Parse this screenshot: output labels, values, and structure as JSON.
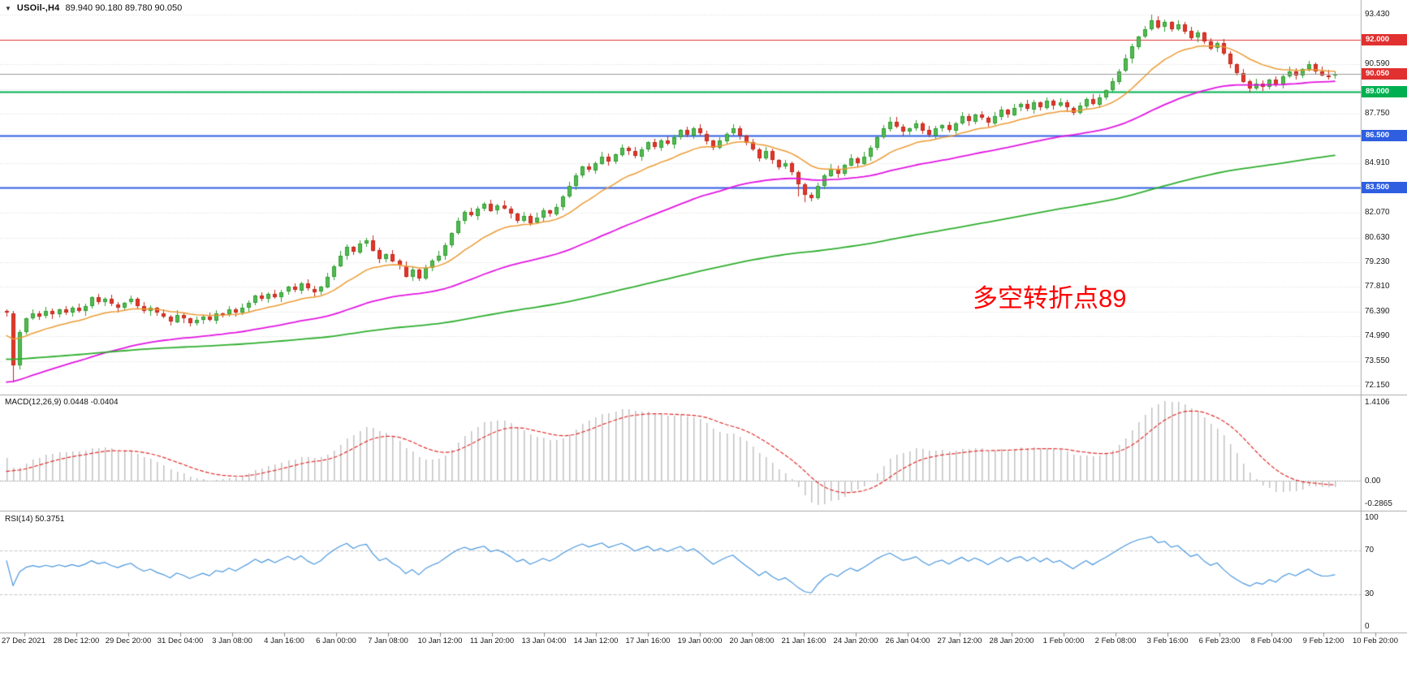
{
  "header": {
    "dropdown_icon": "▼",
    "symbol": "USOil-,H4",
    "ohlc": "89.940 90.180 89.780 90.050"
  },
  "annotation": {
    "text": "多空转折点89",
    "color": "#ff0000"
  },
  "chart_data": {
    "type": "candlestick",
    "symbol": "USOil",
    "timeframe": "H4",
    "candle_colors": {
      "up_fill": "#54b954",
      "up_border": "#2f9e2f",
      "down_fill": "#e2372a",
      "down_border": "#c1271b"
    },
    "grid_color": "#d8d8d8",
    "price_scale": {
      "min": 71.9,
      "max": 94.0
    },
    "y_axis_labels": [
      "93.430",
      "90.590",
      "87.750",
      "84.910",
      "82.070",
      "80.630",
      "79.230",
      "77.810",
      "76.390",
      "74.990",
      "73.550",
      "72.150"
    ],
    "gridline_prices": [
      93.43,
      92.01,
      90.59,
      89.17,
      87.75,
      86.33,
      84.91,
      83.49,
      82.07,
      80.63,
      79.23,
      77.81,
      76.39,
      74.99,
      73.55,
      72.15
    ],
    "hlines": [
      {
        "price": 92.0,
        "label": "92.000",
        "color": "#e03030",
        "width": 1
      },
      {
        "price": 89.0,
        "label": "89.000",
        "color": "#00b050",
        "width": 2
      },
      {
        "price": 86.5,
        "label": "86.500",
        "color": "#2f5fe0",
        "width": 2
      },
      {
        "price": 83.5,
        "label": "83.500",
        "color": "#2f5fe0",
        "width": 2
      }
    ],
    "current_price": {
      "price": 90.05,
      "label": "90.050",
      "badge_color": "#e03030",
      "line_color": "#9a9a9a"
    },
    "moving_averages": [
      {
        "name": "fast-ma",
        "color": "#eb9b34",
        "period": 16,
        "seed": null,
        "width": 1.5
      },
      {
        "name": "medium-ma",
        "color": "#e216e2",
        "period": 55,
        "seed": 68.0,
        "width": 1.8
      },
      {
        "name": "slow-ma",
        "color": "#2fae2f",
        "period": 180,
        "seed": 73.4,
        "width": 1.8
      }
    ],
    "indicator_warmup_closes": [
      75.8,
      75.4,
      74.9,
      74.3,
      73.8,
      73.2,
      72.7,
      72.3,
      72.6,
      73.1,
      72.8,
      72.5,
      72.9,
      73.3,
      73.0,
      73.5,
      73.9,
      73.7,
      74.2,
      74.6,
      74.3,
      74.8,
      75.2,
      74.9,
      75.3,
      75.1,
      74.8,
      75.3,
      75.7,
      75.9
    ],
    "candles": [
      [
        76.4,
        76.5,
        76.1,
        76.3
      ],
      [
        76.3,
        76.4,
        72.3,
        73.3
      ],
      [
        73.3,
        75.35,
        73.05,
        75.2
      ],
      [
        75.2,
        76.05,
        75.05,
        76.0
      ],
      [
        76.0,
        76.5,
        75.9,
        76.3
      ],
      [
        76.3,
        76.4,
        75.9,
        76.1
      ],
      [
        76.1,
        76.65,
        76.02,
        76.4
      ],
      [
        76.4,
        76.55,
        75.95,
        76.2
      ],
      [
        76.2,
        76.55,
        76.05,
        76.5
      ],
      [
        76.5,
        76.7,
        76.2,
        76.3
      ],
      [
        76.3,
        76.7,
        76.1,
        76.6
      ],
      [
        76.6,
        76.85,
        76.32,
        76.4
      ],
      [
        76.4,
        76.85,
        76.15,
        76.7
      ],
      [
        76.7,
        77.25,
        76.55,
        77.2
      ],
      [
        77.2,
        77.4,
        76.8,
        76.9
      ],
      [
        76.9,
        77.2,
        76.7,
        77.1
      ],
      [
        77.1,
        77.35,
        76.72,
        76.8
      ],
      [
        76.8,
        76.95,
        76.35,
        76.6
      ],
      [
        76.6,
        76.95,
        76.45,
        76.9
      ],
      [
        76.9,
        77.3,
        76.8,
        77.1
      ],
      [
        77.1,
        77.2,
        76.5,
        76.7
      ],
      [
        76.7,
        76.95,
        76.32,
        76.4
      ],
      [
        76.4,
        76.75,
        76.15,
        76.6
      ],
      [
        76.6,
        76.65,
        76.15,
        76.3
      ],
      [
        76.3,
        76.5,
        76.0,
        76.1
      ],
      [
        76.1,
        76.2,
        75.6,
        75.8
      ],
      [
        75.8,
        76.45,
        75.72,
        76.2
      ],
      [
        76.2,
        76.35,
        75.75,
        76.0
      ],
      [
        76.0,
        76.05,
        75.55,
        75.7
      ],
      [
        75.7,
        76.1,
        75.6,
        75.9
      ],
      [
        75.9,
        76.2,
        75.7,
        76.1
      ],
      [
        76.1,
        76.35,
        75.82,
        75.9
      ],
      [
        75.9,
        76.45,
        75.65,
        76.3
      ],
      [
        76.3,
        76.35,
        76.05,
        76.2
      ],
      [
        76.2,
        76.7,
        76.1,
        76.5
      ],
      [
        76.5,
        76.6,
        76.1,
        76.3
      ],
      [
        76.3,
        76.85,
        76.22,
        76.6
      ],
      [
        76.6,
        77.05,
        76.35,
        76.9
      ],
      [
        76.9,
        77.35,
        76.75,
        77.3
      ],
      [
        77.3,
        77.5,
        77.0,
        77.1
      ],
      [
        77.1,
        77.5,
        76.9,
        77.4
      ],
      [
        77.4,
        77.65,
        77.12,
        77.2
      ],
      [
        77.2,
        77.65,
        76.95,
        77.5
      ],
      [
        77.5,
        77.85,
        77.35,
        77.8
      ],
      [
        77.8,
        78.0,
        77.5,
        77.6
      ],
      [
        77.6,
        78.1,
        77.4,
        78.0
      ],
      [
        78.0,
        78.25,
        77.62,
        77.7
      ],
      [
        77.7,
        77.85,
        77.25,
        77.5
      ],
      [
        77.5,
        77.85,
        77.35,
        77.8
      ],
      [
        77.8,
        78.6,
        77.7,
        78.4
      ],
      [
        78.4,
        79.1,
        78.2,
        79.0
      ],
      [
        79.0,
        79.85,
        78.92,
        79.6
      ],
      [
        79.6,
        80.25,
        79.35,
        80.1
      ],
      [
        80.1,
        80.15,
        79.65,
        79.8
      ],
      [
        79.8,
        80.5,
        79.7,
        80.3
      ],
      [
        80.3,
        80.6,
        80.1,
        80.5
      ],
      [
        80.5,
        80.75,
        79.82,
        79.9
      ],
      [
        79.9,
        80.05,
        79.15,
        79.4
      ],
      [
        79.4,
        79.75,
        79.25,
        79.7
      ],
      [
        79.7,
        79.9,
        79.2,
        79.3
      ],
      [
        79.3,
        79.4,
        78.8,
        79.0
      ],
      [
        79.0,
        79.25,
        78.32,
        78.4
      ],
      [
        78.4,
        78.95,
        78.15,
        78.8
      ],
      [
        78.8,
        78.85,
        78.15,
        78.3
      ],
      [
        78.3,
        79.1,
        78.2,
        78.9
      ],
      [
        78.9,
        79.4,
        78.7,
        79.3
      ],
      [
        79.3,
        79.85,
        79.22,
        79.6
      ],
      [
        79.6,
        80.35,
        79.35,
        80.2
      ],
      [
        80.2,
        80.95,
        80.05,
        80.9
      ],
      [
        80.9,
        81.8,
        80.8,
        81.6
      ],
      [
        81.6,
        82.2,
        81.4,
        82.1
      ],
      [
        82.1,
        82.35,
        81.82,
        81.9
      ],
      [
        81.9,
        82.45,
        81.65,
        82.3
      ],
      [
        82.3,
        82.65,
        82.15,
        82.6
      ],
      [
        82.6,
        82.8,
        82.1,
        82.2
      ],
      [
        82.2,
        82.6,
        82.0,
        82.5
      ],
      [
        82.5,
        82.75,
        82.22,
        82.3
      ],
      [
        82.3,
        82.45,
        81.75,
        82.0
      ],
      [
        82.0,
        82.05,
        81.45,
        81.6
      ],
      [
        81.6,
        82.1,
        81.5,
        81.9
      ],
      [
        81.9,
        82.0,
        81.3,
        81.5
      ],
      [
        81.5,
        82.05,
        81.42,
        81.8
      ],
      [
        81.8,
        82.35,
        81.55,
        82.2
      ],
      [
        82.2,
        82.25,
        81.85,
        82.0
      ],
      [
        82.0,
        82.6,
        81.9,
        82.4
      ],
      [
        82.4,
        83.1,
        82.2,
        83.0
      ],
      [
        83.0,
        83.85,
        82.92,
        83.6
      ],
      [
        83.6,
        84.35,
        83.35,
        84.2
      ],
      [
        84.2,
        84.75,
        84.05,
        84.7
      ],
      [
        84.7,
        84.9,
        84.4,
        84.5
      ],
      [
        84.5,
        85.0,
        84.3,
        84.9
      ],
      [
        84.9,
        85.55,
        84.82,
        85.3
      ],
      [
        85.3,
        85.45,
        84.75,
        85.0
      ],
      [
        85.0,
        85.45,
        84.85,
        85.4
      ],
      [
        85.4,
        86.0,
        85.3,
        85.8
      ],
      [
        85.8,
        85.9,
        85.4,
        85.6
      ],
      [
        85.6,
        85.85,
        85.22,
        85.3
      ],
      [
        85.3,
        85.85,
        85.05,
        85.7
      ],
      [
        85.7,
        86.15,
        85.55,
        86.1
      ],
      [
        86.1,
        86.3,
        85.7,
        85.8
      ],
      [
        85.8,
        86.3,
        85.6,
        86.2
      ],
      [
        86.2,
        86.45,
        85.92,
        86.0
      ],
      [
        86.0,
        86.55,
        85.75,
        86.4
      ],
      [
        86.4,
        86.85,
        86.25,
        86.8
      ],
      [
        86.8,
        87.0,
        86.4,
        86.5
      ],
      [
        86.5,
        87.0,
        86.3,
        86.9
      ],
      [
        86.9,
        87.15,
        86.52,
        86.6
      ],
      [
        86.6,
        86.75,
        85.95,
        86.2
      ],
      [
        86.2,
        86.25,
        85.65,
        85.8
      ],
      [
        85.8,
        86.4,
        85.7,
        86.2
      ],
      [
        86.2,
        86.7,
        86.0,
        86.6
      ],
      [
        86.6,
        87.15,
        86.52,
        86.9
      ],
      [
        86.9,
        87.05,
        86.25,
        86.5
      ],
      [
        86.5,
        86.55,
        85.95,
        86.1
      ],
      [
        86.1,
        86.3,
        85.6,
        85.7
      ],
      [
        85.7,
        85.8,
        85.0,
        85.2
      ],
      [
        85.2,
        85.85,
        85.12,
        85.6
      ],
      [
        85.6,
        85.75,
        84.85,
        85.1
      ],
      [
        85.1,
        85.15,
        84.55,
        84.7
      ],
      [
        84.7,
        85.1,
        84.6,
        84.9
      ],
      [
        84.9,
        85.0,
        84.2,
        84.4
      ],
      [
        84.4,
        84.5,
        83.0,
        83.7
      ],
      [
        83.7,
        83.8,
        82.7,
        83.1
      ],
      [
        83.1,
        83.25,
        82.75,
        82.9
      ],
      [
        82.9,
        83.8,
        82.8,
        83.6
      ],
      [
        83.6,
        84.3,
        83.4,
        84.2
      ],
      [
        84.2,
        84.85,
        84.12,
        84.6
      ],
      [
        84.6,
        84.75,
        84.05,
        84.3
      ],
      [
        84.3,
        84.85,
        84.15,
        84.8
      ],
      [
        84.8,
        85.4,
        84.7,
        85.2
      ],
      [
        85.2,
        85.3,
        84.7,
        84.9
      ],
      [
        84.9,
        85.55,
        84.82,
        85.3
      ],
      [
        85.3,
        85.95,
        85.05,
        85.8
      ],
      [
        85.8,
        86.45,
        85.65,
        86.4
      ],
      [
        86.4,
        87.1,
        86.3,
        86.9
      ],
      [
        86.9,
        87.55,
        86.7,
        87.3
      ],
      [
        87.3,
        87.55,
        86.92,
        87.0
      ],
      [
        87.0,
        87.15,
        86.45,
        86.7
      ],
      [
        86.7,
        86.95,
        86.55,
        86.9
      ],
      [
        86.9,
        87.4,
        86.8,
        87.2
      ],
      [
        87.2,
        87.3,
        86.6,
        86.8
      ],
      [
        86.8,
        87.05,
        86.42,
        86.5
      ],
      [
        86.5,
        87.05,
        86.25,
        86.9
      ],
      [
        86.9,
        87.15,
        86.75,
        87.1
      ],
      [
        87.1,
        87.3,
        86.7,
        86.8
      ],
      [
        86.8,
        87.3,
        86.6,
        87.2
      ],
      [
        87.2,
        87.85,
        87.12,
        87.6
      ],
      [
        87.6,
        87.75,
        87.05,
        87.3
      ],
      [
        87.3,
        87.75,
        87.15,
        87.7
      ],
      [
        87.7,
        87.9,
        87.4,
        87.5
      ],
      [
        87.5,
        87.6,
        87.0,
        87.2
      ],
      [
        87.2,
        87.85,
        87.12,
        87.6
      ],
      [
        87.6,
        88.15,
        87.35,
        88.0
      ],
      [
        88.0,
        88.05,
        87.55,
        87.7
      ],
      [
        87.7,
        88.3,
        87.6,
        88.1
      ],
      [
        88.1,
        88.4,
        87.9,
        88.3
      ],
      [
        88.3,
        88.55,
        87.92,
        88.0
      ],
      [
        88.0,
        88.55,
        87.75,
        88.4
      ],
      [
        88.4,
        88.45,
        87.95,
        88.1
      ],
      [
        88.1,
        88.7,
        88.0,
        88.5
      ],
      [
        88.5,
        88.6,
        88.0,
        88.2
      ],
      [
        88.2,
        88.65,
        88.12,
        88.4
      ],
      [
        88.4,
        88.55,
        87.85,
        88.1
      ],
      [
        88.1,
        88.15,
        87.65,
        87.8
      ],
      [
        87.8,
        88.4,
        87.7,
        88.2
      ],
      [
        88.2,
        88.7,
        88.0,
        88.6
      ],
      [
        88.6,
        88.85,
        88.22,
        88.3
      ],
      [
        88.3,
        88.85,
        88.05,
        88.7
      ],
      [
        88.7,
        89.15,
        88.55,
        89.1
      ],
      [
        89.1,
        89.8,
        89.0,
        89.6
      ],
      [
        89.6,
        90.3,
        89.4,
        90.2
      ],
      [
        90.2,
        91.15,
        90.12,
        90.9
      ],
      [
        90.9,
        91.75,
        90.65,
        91.6
      ],
      [
        91.6,
        92.25,
        91.45,
        92.2
      ],
      [
        92.2,
        92.8,
        92.1,
        92.6
      ],
      [
        92.6,
        93.43,
        92.5,
        93.1
      ],
      [
        93.1,
        93.35,
        92.62,
        92.7
      ],
      [
        92.7,
        93.15,
        92.45,
        93.0
      ],
      [
        93.0,
        93.05,
        92.45,
        92.6
      ],
      [
        92.6,
        93.1,
        92.5,
        92.9
      ],
      [
        92.9,
        93.0,
        92.3,
        92.5
      ],
      [
        92.5,
        92.75,
        92.02,
        92.1
      ],
      [
        92.1,
        92.55,
        91.85,
        92.4
      ],
      [
        92.4,
        92.45,
        91.75,
        91.9
      ],
      [
        91.9,
        92.1,
        91.4,
        91.5
      ],
      [
        91.5,
        91.9,
        91.3,
        91.8
      ],
      [
        91.8,
        92.05,
        91.12,
        91.2
      ],
      [
        91.2,
        91.35,
        90.35,
        90.6
      ],
      [
        90.6,
        90.65,
        89.95,
        90.1
      ],
      [
        90.1,
        90.3,
        89.5,
        89.6
      ],
      [
        89.6,
        89.7,
        88.95,
        89.2
      ],
      [
        89.2,
        89.75,
        89.12,
        89.5
      ],
      [
        89.5,
        89.65,
        89.05,
        89.3
      ],
      [
        89.3,
        89.75,
        89.15,
        89.7
      ],
      [
        89.7,
        89.9,
        89.3,
        89.4
      ],
      [
        89.4,
        90.0,
        89.2,
        89.9
      ],
      [
        89.9,
        90.45,
        89.82,
        90.2
      ],
      [
        90.2,
        90.35,
        89.7,
        89.95
      ],
      [
        89.95,
        90.35,
        89.8,
        90.3
      ],
      [
        90.3,
        90.8,
        90.2,
        90.6
      ],
      [
        90.6,
        90.7,
        90.0,
        90.2
      ],
      [
        90.2,
        90.45,
        89.87,
        89.95
      ],
      [
        89.95,
        90.25,
        89.7,
        89.94
      ],
      [
        89.94,
        90.18,
        89.78,
        90.05
      ]
    ],
    "x_labels": [
      "27 Dec 2021",
      "28 Dec 12:00",
      "29 Dec 20:00",
      "31 Dec 04:00",
      "3 Jan 08:00",
      "4 Jan 16:00",
      "6 Jan 00:00",
      "7 Jan 08:00",
      "10 Jan 12:00",
      "11 Jan 20:00",
      "13 Jan 04:00",
      "14 Jan 12:00",
      "17 Jan 16:00",
      "19 Jan 00:00",
      "20 Jan 08:00",
      "21 Jan 16:00",
      "24 Jan 20:00",
      "26 Jan 04:00",
      "27 Jan 12:00",
      "28 Jan 20:00",
      "1 Feb 00:00",
      "2 Feb 08:00",
      "3 Feb 16:00",
      "6 Feb 23:00",
      "8 Feb 04:00",
      "9 Feb 12:00",
      "10 Feb 20:00"
    ],
    "indicators": {
      "macd": {
        "label": "MACD(12,26,9)",
        "values": "0.0448 -0.0404",
        "fast": 12,
        "slow": 26,
        "signal": 9,
        "axis_labels": [
          "1.4106",
          "0.00",
          "-0.2865"
        ],
        "bar_color": "#c2c2c2",
        "signal_color": "#e03030"
      },
      "rsi": {
        "label": "RSI(14)",
        "value": "50.3751",
        "period": 14,
        "axis_labels": [
          "100",
          "70",
          "30",
          "0"
        ],
        "levels": [
          70,
          30
        ],
        "line_color": "#4a97dd",
        "level_color": "#c6c6c6"
      }
    }
  }
}
